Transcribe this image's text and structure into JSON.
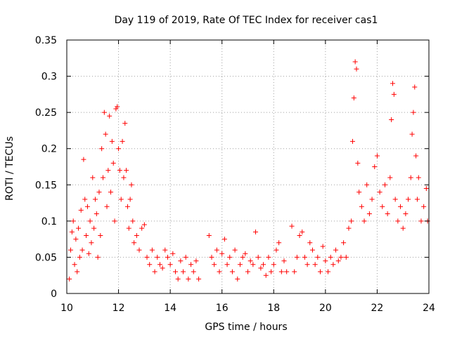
{
  "chart_data": {
    "type": "scatter",
    "title": "Day 119 of 2019, Rate Of TEC Index for receiver cas1",
    "xlabel": "GPS time / hours",
    "ylabel": "ROTI / TECUs",
    "xlim": [
      10,
      24
    ],
    "ylim": [
      0,
      0.35
    ],
    "xticks": [
      10,
      12,
      14,
      16,
      18,
      20,
      22,
      24
    ],
    "yticks": [
      0,
      0.05,
      0.1,
      0.15,
      0.2,
      0.25,
      0.3,
      0.35
    ],
    "xtick_labels": [
      "10",
      "12",
      "14",
      "16",
      "18",
      "20",
      "22",
      "24"
    ],
    "ytick_labels": [
      "0",
      "0.05",
      "0.1",
      "0.15",
      "0.2",
      "0.25",
      "0.3",
      "0.35"
    ],
    "grid": true,
    "marker": "+",
    "marker_color": "#ff0000",
    "series": [
      {
        "name": "ROTI",
        "points": [
          [
            10.1,
            0.02
          ],
          [
            10.15,
            0.06
          ],
          [
            10.2,
            0.085
          ],
          [
            10.25,
            0.1
          ],
          [
            10.3,
            0.04
          ],
          [
            10.35,
            0.075
          ],
          [
            10.4,
            0.03
          ],
          [
            10.45,
            0.09
          ],
          [
            10.5,
            0.05
          ],
          [
            10.55,
            0.115
          ],
          [
            10.6,
            0.06
          ],
          [
            10.65,
            0.185
          ],
          [
            10.7,
            0.13
          ],
          [
            10.75,
            0.08
          ],
          [
            10.8,
            0.12
          ],
          [
            10.85,
            0.055
          ],
          [
            10.9,
            0.1
          ],
          [
            10.95,
            0.07
          ],
          [
            11.0,
            0.16
          ],
          [
            11.05,
            0.09
          ],
          [
            11.1,
            0.13
          ],
          [
            11.15,
            0.11
          ],
          [
            11.2,
            0.05
          ],
          [
            11.25,
            0.14
          ],
          [
            11.3,
            0.08
          ],
          [
            11.35,
            0.2
          ],
          [
            11.4,
            0.16
          ],
          [
            11.45,
            0.25
          ],
          [
            11.5,
            0.22
          ],
          [
            11.55,
            0.12
          ],
          [
            11.6,
            0.17
          ],
          [
            11.65,
            0.245
          ],
          [
            11.7,
            0.14
          ],
          [
            11.75,
            0.21
          ],
          [
            11.8,
            0.18
          ],
          [
            11.85,
            0.1
          ],
          [
            11.9,
            0.255
          ],
          [
            11.95,
            0.258
          ],
          [
            12.0,
            0.2
          ],
          [
            12.05,
            0.17
          ],
          [
            12.1,
            0.13
          ],
          [
            12.15,
            0.21
          ],
          [
            12.2,
            0.16
          ],
          [
            12.25,
            0.235
          ],
          [
            12.3,
            0.17
          ],
          [
            12.35,
            0.12
          ],
          [
            12.4,
            0.09
          ],
          [
            12.45,
            0.13
          ],
          [
            12.5,
            0.15
          ],
          [
            12.55,
            0.1
          ],
          [
            12.6,
            0.07
          ],
          [
            12.7,
            0.08
          ],
          [
            12.8,
            0.06
          ],
          [
            12.9,
            0.09
          ],
          [
            13.0,
            0.095
          ],
          [
            13.1,
            0.05
          ],
          [
            13.2,
            0.04
          ],
          [
            13.3,
            0.06
          ],
          [
            13.4,
            0.03
          ],
          [
            13.5,
            0.05
          ],
          [
            13.6,
            0.04
          ],
          [
            13.7,
            0.035
          ],
          [
            13.8,
            0.06
          ],
          [
            13.9,
            0.05
          ],
          [
            14.0,
            0.04
          ],
          [
            14.1,
            0.055
          ],
          [
            14.2,
            0.03
          ],
          [
            14.3,
            0.02
          ],
          [
            14.4,
            0.045
          ],
          [
            14.5,
            0.03
          ],
          [
            14.6,
            0.05
          ],
          [
            14.7,
            0.02
          ],
          [
            14.8,
            0.04
          ],
          [
            14.9,
            0.03
          ],
          [
            15.0,
            0.045
          ],
          [
            15.1,
            0.02
          ],
          [
            15.5,
            0.08
          ],
          [
            15.6,
            0.05
          ],
          [
            15.7,
            0.04
          ],
          [
            15.8,
            0.06
          ],
          [
            15.9,
            0.03
          ],
          [
            16.0,
            0.055
          ],
          [
            16.1,
            0.075
          ],
          [
            16.2,
            0.04
          ],
          [
            16.3,
            0.05
          ],
          [
            16.4,
            0.03
          ],
          [
            16.5,
            0.06
          ],
          [
            16.6,
            0.02
          ],
          [
            16.7,
            0.04
          ],
          [
            16.8,
            0.05
          ],
          [
            16.9,
            0.055
          ],
          [
            17.0,
            0.03
          ],
          [
            17.1,
            0.045
          ],
          [
            17.2,
            0.04
          ],
          [
            17.3,
            0.085
          ],
          [
            17.4,
            0.05
          ],
          [
            17.5,
            0.035
          ],
          [
            17.6,
            0.04
          ],
          [
            17.7,
            0.025
          ],
          [
            17.8,
            0.05
          ],
          [
            17.9,
            0.03
          ],
          [
            18.0,
            0.04
          ],
          [
            18.1,
            0.06
          ],
          [
            18.2,
            0.07
          ],
          [
            18.3,
            0.03
          ],
          [
            18.4,
            0.045
          ],
          [
            18.5,
            0.03
          ],
          [
            18.7,
            0.093
          ],
          [
            18.8,
            0.03
          ],
          [
            18.9,
            0.05
          ],
          [
            19.0,
            0.08
          ],
          [
            19.1,
            0.085
          ],
          [
            19.2,
            0.05
          ],
          [
            19.3,
            0.04
          ],
          [
            19.4,
            0.07
          ],
          [
            19.5,
            0.06
          ],
          [
            19.6,
            0.04
          ],
          [
            19.7,
            0.05
          ],
          [
            19.8,
            0.03
          ],
          [
            19.9,
            0.065
          ],
          [
            20.0,
            0.045
          ],
          [
            20.1,
            0.03
          ],
          [
            20.2,
            0.05
          ],
          [
            20.3,
            0.04
          ],
          [
            20.4,
            0.06
          ],
          [
            20.5,
            0.045
          ],
          [
            20.6,
            0.05
          ],
          [
            20.7,
            0.07
          ],
          [
            20.8,
            0.05
          ],
          [
            20.9,
            0.09
          ],
          [
            21.0,
            0.1
          ],
          [
            21.05,
            0.21
          ],
          [
            21.1,
            0.27
          ],
          [
            21.15,
            0.32
          ],
          [
            21.2,
            0.31
          ],
          [
            21.25,
            0.18
          ],
          [
            21.3,
            0.14
          ],
          [
            21.4,
            0.12
          ],
          [
            21.5,
            0.1
          ],
          [
            21.6,
            0.15
          ],
          [
            21.7,
            0.11
          ],
          [
            21.8,
            0.13
          ],
          [
            21.9,
            0.175
          ],
          [
            22.0,
            0.19
          ],
          [
            22.1,
            0.14
          ],
          [
            22.2,
            0.12
          ],
          [
            22.3,
            0.15
          ],
          [
            22.4,
            0.11
          ],
          [
            22.5,
            0.16
          ],
          [
            22.55,
            0.24
          ],
          [
            22.6,
            0.29
          ],
          [
            22.65,
            0.275
          ],
          [
            22.7,
            0.13
          ],
          [
            22.8,
            0.1
          ],
          [
            22.9,
            0.12
          ],
          [
            23.0,
            0.09
          ],
          [
            23.1,
            0.11
          ],
          [
            23.2,
            0.13
          ],
          [
            23.3,
            0.16
          ],
          [
            23.35,
            0.22
          ],
          [
            23.4,
            0.25
          ],
          [
            23.45,
            0.285
          ],
          [
            23.5,
            0.19
          ],
          [
            23.55,
            0.13
          ],
          [
            23.6,
            0.16
          ],
          [
            23.7,
            0.1
          ],
          [
            23.8,
            0.12
          ],
          [
            23.9,
            0.145
          ],
          [
            23.95,
            0.1
          ]
        ]
      }
    ]
  }
}
